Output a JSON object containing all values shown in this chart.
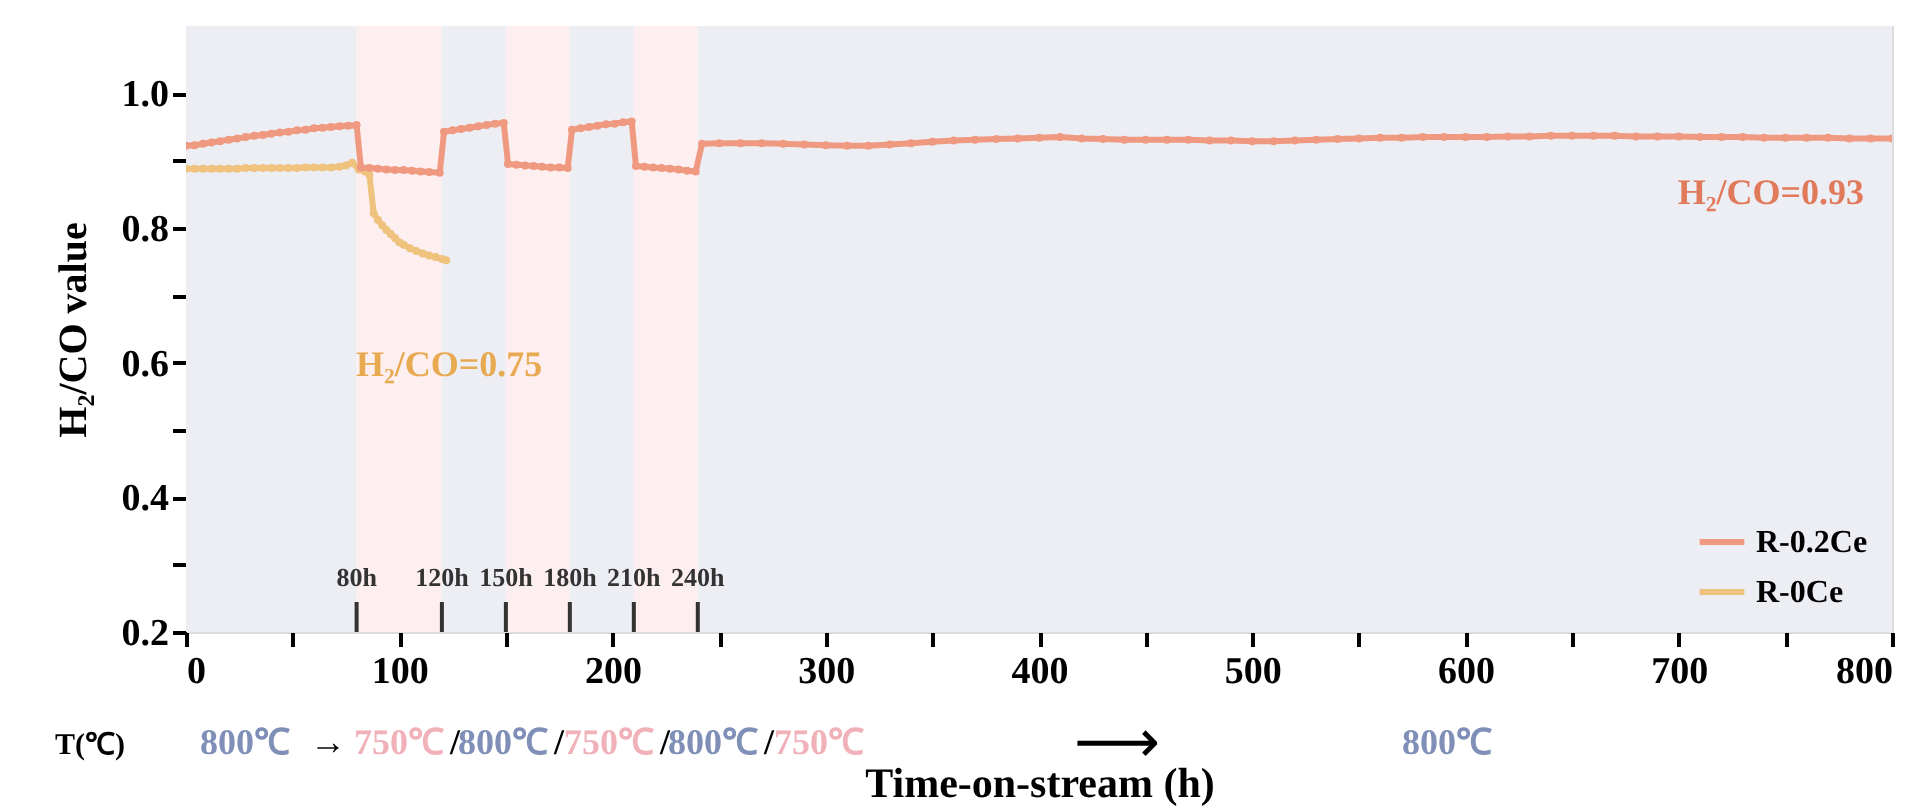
{
  "chart_data": {
    "type": "line",
    "xlabel": "Time-on-stream (h)",
    "ylabel": "H₂/CO value",
    "xlim": [
      0,
      800
    ],
    "ylim": [
      0.2,
      1.1
    ],
    "xticks": [
      0,
      {
        "value": 50,
        "label": null
      },
      100,
      {
        "value": 150,
        "label": null
      },
      200,
      {
        "value": 250,
        "label": null
      },
      300,
      {
        "value": 350,
        "label": null
      },
      400,
      {
        "value": 450,
        "label": null
      },
      500,
      {
        "value": 550,
        "label": null
      },
      600,
      {
        "value": 650,
        "label": null
      },
      700,
      {
        "value": 750,
        "label": null
      },
      800
    ],
    "yticks": [
      0.2,
      {
        "value": 0.3,
        "label": null
      },
      0.4,
      {
        "value": 0.5,
        "label": null
      },
      0.6,
      {
        "value": 0.7,
        "label": null
      },
      0.8,
      {
        "value": 0.9,
        "label": null
      },
      {
        "value": 1,
        "label": "1.0"
      }
    ],
    "series": [
      {
        "name": "R-0.2Ce",
        "color": "#ef9a80",
        "x": [
          0,
          4,
          8,
          12,
          16,
          20,
          24,
          28,
          32,
          36,
          40,
          44,
          48,
          52,
          56,
          60,
          64,
          68,
          72,
          76,
          80,
          82,
          86,
          90,
          94,
          98,
          102,
          106,
          110,
          114,
          119,
          121,
          125,
          129,
          133,
          137,
          141,
          145,
          149,
          151,
          155,
          159,
          163,
          167,
          171,
          175,
          179,
          181,
          185,
          189,
          193,
          197,
          201,
          205,
          209,
          211,
          215,
          219,
          223,
          227,
          231,
          235,
          239,
          242,
          250,
          260,
          270,
          280,
          290,
          300,
          310,
          320,
          330,
          340,
          350,
          360,
          370,
          380,
          390,
          400,
          410,
          420,
          430,
          440,
          450,
          460,
          470,
          480,
          490,
          500,
          510,
          520,
          530,
          540,
          550,
          560,
          570,
          580,
          590,
          600,
          610,
          620,
          630,
          640,
          650,
          660,
          670,
          680,
          690,
          700,
          710,
          720,
          730,
          740,
          750,
          760,
          770,
          780,
          790,
          800
        ],
        "values": [
          0.922,
          0.923,
          0.925,
          0.927,
          0.929,
          0.931,
          0.933,
          0.935,
          0.937,
          0.938,
          0.94,
          0.942,
          0.943,
          0.945,
          0.946,
          0.948,
          0.949,
          0.95,
          0.951,
          0.952,
          0.953,
          0.89,
          0.889,
          0.888,
          0.887,
          0.886,
          0.886,
          0.885,
          0.884,
          0.883,
          0.882,
          0.943,
          0.945,
          0.947,
          0.949,
          0.951,
          0.953,
          0.955,
          0.956,
          0.895,
          0.894,
          0.893,
          0.892,
          0.891,
          0.89,
          0.89,
          0.889,
          0.946,
          0.948,
          0.95,
          0.952,
          0.954,
          0.955,
          0.957,
          0.958,
          0.892,
          0.891,
          0.89,
          0.889,
          0.888,
          0.887,
          0.885,
          0.884,
          0.925,
          0.926,
          0.926,
          0.926,
          0.925,
          0.924,
          0.923,
          0.922,
          0.922,
          0.924,
          0.926,
          0.928,
          0.93,
          0.931,
          0.932,
          0.933,
          0.934,
          0.935,
          0.933,
          0.932,
          0.931,
          0.931,
          0.931,
          0.931,
          0.93,
          0.93,
          0.929,
          0.929,
          0.93,
          0.931,
          0.932,
          0.933,
          0.934,
          0.934,
          0.935,
          0.935,
          0.935,
          0.935,
          0.936,
          0.936,
          0.937,
          0.937,
          0.937,
          0.937,
          0.936,
          0.936,
          0.936,
          0.935,
          0.935,
          0.935,
          0.934,
          0.934,
          0.934,
          0.934,
          0.933,
          0.933,
          0.933
        ]
      },
      {
        "name": "R-0Ce",
        "color": "#efc27e",
        "x": [
          0,
          4,
          8,
          12,
          16,
          20,
          24,
          28,
          32,
          36,
          40,
          44,
          48,
          52,
          56,
          60,
          64,
          68,
          72,
          75,
          78,
          81,
          84,
          86,
          88,
          90,
          92,
          94,
          96,
          98,
          100,
          102,
          105,
          108,
          111,
          114,
          117,
          120,
          122
        ],
        "values": [
          0.888,
          0.888,
          0.888,
          0.888,
          0.888,
          0.888,
          0.888,
          0.889,
          0.889,
          0.889,
          0.889,
          0.889,
          0.889,
          0.889,
          0.89,
          0.89,
          0.89,
          0.89,
          0.891,
          0.893,
          0.897,
          0.887,
          0.884,
          0.879,
          0.822,
          0.812,
          0.804,
          0.797,
          0.791,
          0.785,
          0.779,
          0.775,
          0.77,
          0.766,
          0.762,
          0.759,
          0.757,
          0.754,
          0.752
        ]
      }
    ],
    "bands": [
      {
        "axis": "x",
        "from": 0,
        "to": 80,
        "color": "#eceef4"
      },
      {
        "axis": "x",
        "from": 80,
        "to": 120,
        "color": "#fdeef0"
      },
      {
        "axis": "x",
        "from": 120,
        "to": 150,
        "color": "#eceef4"
      },
      {
        "axis": "x",
        "from": 150,
        "to": 180,
        "color": "#fdeef0"
      },
      {
        "axis": "x",
        "from": 180,
        "to": 210,
        "color": "#eceef4"
      },
      {
        "axis": "x",
        "from": 210,
        "to": 240,
        "color": "#fdeef0"
      },
      {
        "axis": "x",
        "from": 240,
        "to": 800,
        "color": "#eceef4"
      }
    ],
    "ref_lines": [
      {
        "axis": "x",
        "value": 80,
        "label": "80h",
        "color": "#333333"
      },
      {
        "axis": "x",
        "value": 120,
        "label": "120h",
        "color": "#333333"
      },
      {
        "axis": "x",
        "value": 150,
        "label": "150h",
        "color": "#333333"
      },
      {
        "axis": "x",
        "value": 180,
        "label": "180h",
        "color": "#333333"
      },
      {
        "axis": "x",
        "value": 210,
        "label": "210h",
        "color": "#333333"
      },
      {
        "axis": "x",
        "value": 240,
        "label": "240h",
        "color": "#333333"
      }
    ],
    "annotations": [
      "H₂/CO=0.93",
      "H₂/CO=0.75",
      "T(℃)",
      "800℃",
      "→",
      "750℃",
      "/",
      "800℃",
      "/",
      "750℃",
      "/",
      "800℃",
      "/",
      "750℃",
      "⟶",
      "800℃"
    ],
    "legend": "bottom right",
    "grid": false,
    "marker": "circle",
    "line_style": "solid"
  }
}
